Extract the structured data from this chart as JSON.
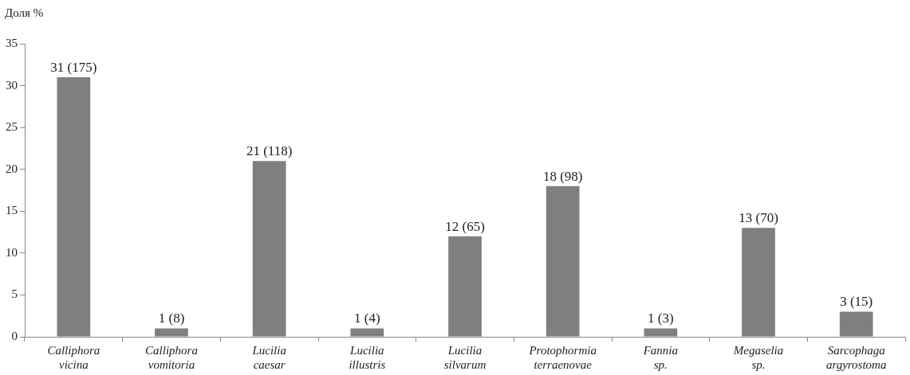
{
  "chart_data": {
    "type": "bar",
    "ylabel": "Доля %",
    "categories": [
      "Calliphora vicina",
      "Calliphora vomitoria",
      "Lucilia caesar",
      "Lucilia illustris",
      "Lucilia silvarum",
      "Protophormia terraenovae",
      "Fannia sp.",
      "Megaselia sp.",
      "Sarcophaga argyrostoma"
    ],
    "values": [
      31,
      1,
      21,
      1,
      12,
      18,
      1,
      13,
      3
    ],
    "value_labels": [
      "31 (175)",
      "1 (8)",
      "21 (118)",
      "1 (4)",
      "12 (65)",
      "18 (98)",
      "1 (3)",
      "13 (70)",
      "3 (15)"
    ],
    "color": "#7f7f7f",
    "ylim": [
      0,
      35
    ],
    "yticks": [
      0,
      5,
      10,
      15,
      20,
      25,
      30,
      35
    ],
    "grid": false,
    "legend": false
  }
}
